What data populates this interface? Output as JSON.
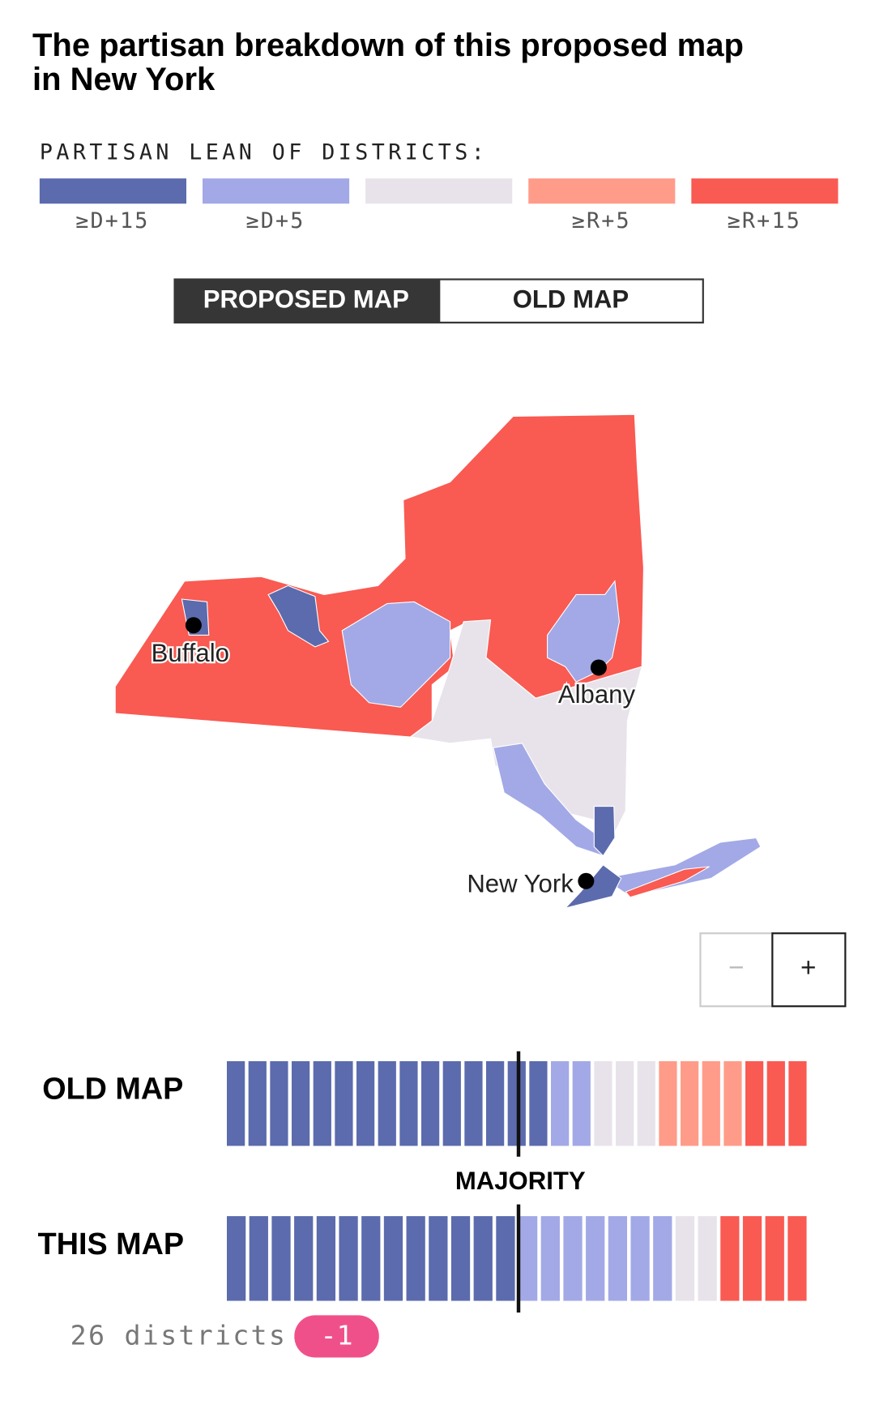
{
  "title": "The partisan breakdown of this proposed map in New York",
  "legend": {
    "title": "PARTISAN LEAN OF DISTRICTS:",
    "items": [
      {
        "label": "≥D+15",
        "color": "#5b6bad"
      },
      {
        "label": "≥D+5",
        "color": "#a2a9e6"
      },
      {
        "color": "#e8e3ea"
      },
      {
        "label": "≥R+5",
        "color": "#ff9c89"
      },
      {
        "label": "≥R+15",
        "color": "#f95a52"
      }
    ]
  },
  "tabs": [
    "PROPOSED MAP",
    "OLD MAP"
  ],
  "map_labels": [
    "Buffalo",
    "Albany",
    "New York"
  ],
  "zoom": [
    "−",
    "+"
  ],
  "comparison": {
    "majority_label": "MAJORITY",
    "rows": [
      {
        "label": "OLD MAP",
        "counts": [
          15,
          2,
          3,
          4,
          3
        ]
      },
      {
        "label": "THIS MAP",
        "counts": [
          13,
          7,
          2,
          0,
          4
        ]
      }
    ]
  },
  "footer": {
    "districts": "26 districts",
    "change": "-1"
  }
}
